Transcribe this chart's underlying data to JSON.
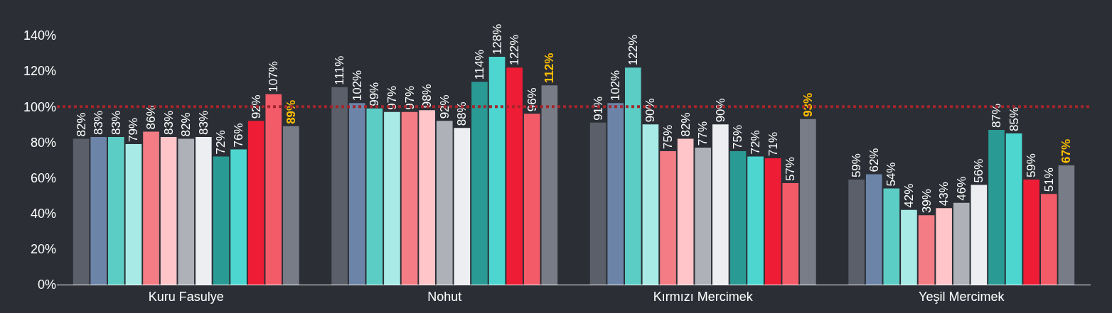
{
  "chart_data": {
    "type": "bar",
    "categories": [
      "Kuru Fasulye",
      "Nohut",
      "Kırmızı Mercimek",
      "Yeşil Mercimek"
    ],
    "series": [
      {
        "color": "#5a5f69",
        "values": [
          82,
          111,
          91,
          59
        ],
        "value_labels": [
          "82%",
          "111%",
          "91%",
          "59%"
        ]
      },
      {
        "color": "#6b84a8",
        "values": [
          83,
          102,
          102,
          62
        ],
        "value_labels": [
          "83%",
          "102%",
          "102%",
          "62%"
        ]
      },
      {
        "color": "#5ccdc5",
        "values": [
          83,
          99,
          122,
          54
        ],
        "value_labels": [
          "83%",
          "99%",
          "122%",
          "54%"
        ]
      },
      {
        "color": "#a8ebe6",
        "values": [
          79,
          97,
          90,
          42
        ],
        "value_labels": [
          "79%",
          "97%",
          "90%",
          "42%"
        ]
      },
      {
        "color": "#f47c85",
        "values": [
          86,
          97,
          75,
          39
        ],
        "value_labels": [
          "86%",
          "97%",
          "75%",
          "39%"
        ]
      },
      {
        "color": "#ffc5c9",
        "values": [
          83,
          98,
          82,
          43
        ],
        "value_labels": [
          "83%",
          "98%",
          "82%",
          "43%"
        ]
      },
      {
        "color": "#aeb1b8",
        "values": [
          82,
          92,
          77,
          46
        ],
        "value_labels": [
          "82%",
          "92%",
          "77%",
          "46%"
        ]
      },
      {
        "color": "#eceef2",
        "values": [
          83,
          88,
          90,
          56
        ],
        "value_labels": [
          "83%",
          "88%",
          "90%",
          "56%"
        ]
      },
      {
        "color": "#2a9a94",
        "values": [
          72,
          114,
          75,
          87
        ],
        "value_labels": [
          "72%",
          "114%",
          "75%",
          "87%"
        ]
      },
      {
        "color": "#4dd6d0",
        "values": [
          76,
          128,
          72,
          85
        ],
        "value_labels": [
          "76%",
          "128%",
          "72%",
          "85%"
        ]
      },
      {
        "color": "#ee1c35",
        "values": [
          92,
          122,
          71,
          59
        ],
        "value_labels": [
          "92%",
          "122%",
          "71%",
          "59%"
        ]
      },
      {
        "color": "#f45b69",
        "values": [
          107,
          96,
          57,
          51
        ],
        "value_labels": [
          "107%",
          "96%",
          "57%",
          "51%"
        ]
      },
      {
        "color": "#787c87",
        "values": [
          89,
          112,
          93,
          67
        ],
        "value_labels": [
          "89%",
          "112%",
          "93%",
          "67%"
        ]
      }
    ],
    "ylim": [
      0,
      140
    ],
    "yticks": [
      {
        "value": 0,
        "label": "0%"
      },
      {
        "value": 20,
        "label": "20%"
      },
      {
        "value": 40,
        "label": "40%"
      },
      {
        "value": 60,
        "label": "60%"
      },
      {
        "value": 80,
        "label": "80%"
      },
      {
        "value": 100,
        "label": "100%"
      },
      {
        "value": 120,
        "label": "120%"
      },
      {
        "value": 140,
        "label": "140%"
      }
    ],
    "ref_lines": [
      {
        "axis": "y",
        "value": 100,
        "color": "#a3262c",
        "line_style": "dotted"
      }
    ],
    "grid": false,
    "legend": false
  }
}
